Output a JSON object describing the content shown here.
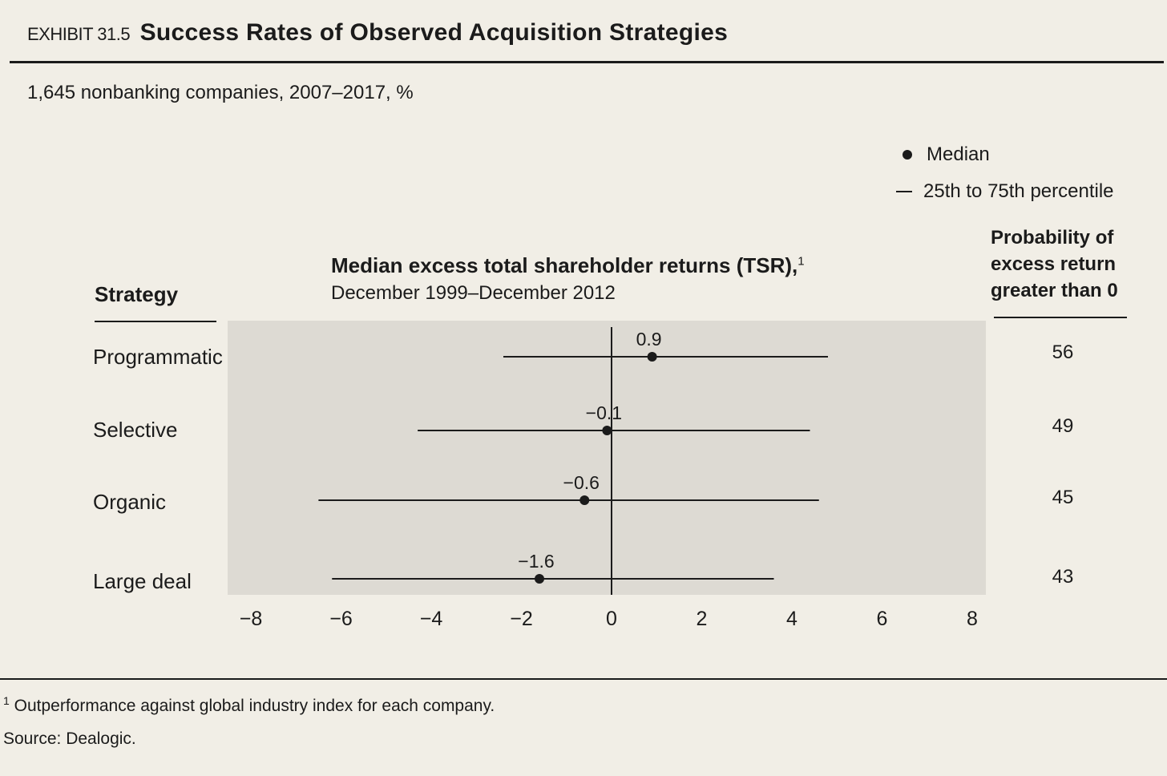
{
  "header": {
    "exhibit_label": "EXHIBIT 31.5",
    "title": "Success Rates of Observed Acquisition Strategies",
    "subtitle": "1,645 nonbanking companies, 2007–2017, %"
  },
  "legend": {
    "median": "Median",
    "range": "25th to 75th percentile"
  },
  "columns": {
    "strategy": "Strategy",
    "chart_title": "Median excess total shareholder returns (TSR),",
    "chart_title_note": "1",
    "chart_subtitle": "December 1999–December 2012",
    "probability_lines": [
      "Probability of",
      "excess return",
      "greater than 0"
    ]
  },
  "rows": [
    {
      "strategy": "Programmatic",
      "probability": "56"
    },
    {
      "strategy": "Selective",
      "probability": "49"
    },
    {
      "strategy": "Organic",
      "probability": "45"
    },
    {
      "strategy": "Large deal",
      "probability": "43"
    }
  ],
  "footnote": {
    "marker": "1",
    "text": "Outperformance against global industry index for each company."
  },
  "source": "Source: Dealogic.",
  "chart_data": {
    "type": "range-dot",
    "categories": [
      "Programmatic",
      "Selective",
      "Organic",
      "Large deal"
    ],
    "median": [
      0.9,
      -0.1,
      -0.6,
      -1.6
    ],
    "median_labels": [
      "0.9",
      "−0.1",
      "−0.6",
      "−1.6"
    ],
    "p25": [
      -2.4,
      -4.3,
      -6.5,
      -6.2
    ],
    "p75": [
      4.8,
      4.4,
      4.6,
      3.6
    ],
    "xlim": [
      -8,
      8
    ],
    "xticks": [
      -8,
      -6,
      -4,
      -2,
      0,
      2,
      4,
      6,
      8
    ],
    "xtick_labels": [
      "−8",
      "−6",
      "−4",
      "−2",
      "0",
      "2",
      "4",
      "6",
      "8"
    ],
    "colors": {
      "ink": "#1b1b1b",
      "panel": "#dddad3"
    }
  }
}
